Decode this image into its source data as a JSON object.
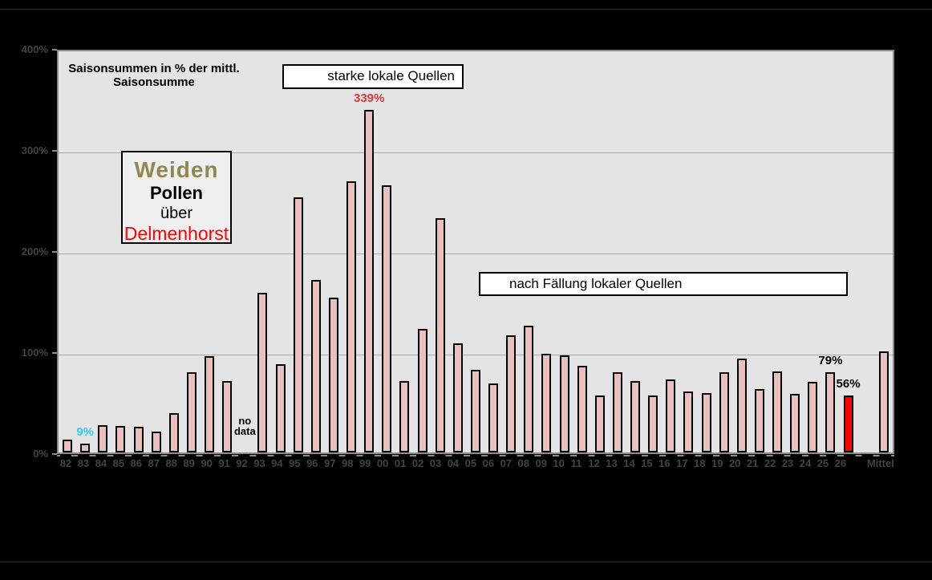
{
  "chart_data": {
    "type": "bar",
    "title_lines": [
      "Saisonsummen in %  der mittl.",
      "Saisonsumme"
    ],
    "info_box": {
      "line1": "Weiden",
      "line2": "Pollen",
      "line3": "über",
      "line4": "Delmenhorst"
    },
    "annotation_boxes": {
      "strong_sources": "starke lokale Quellen",
      "after_felling": "nach Fällung  lokaler Quellen"
    },
    "y_axis": {
      "ticks": [
        "400%",
        "300%",
        "200%",
        "100%",
        "0%"
      ],
      "min": 0,
      "max": 400,
      "grid": true
    },
    "legend_position": "none",
    "bars": [
      {
        "label": "82",
        "value": 13
      },
      {
        "label": "83",
        "value": 9,
        "value_label": "9%",
        "value_label_color": "#33CCFF"
      },
      {
        "label": "84",
        "value": 27
      },
      {
        "label": "85",
        "value": 26
      },
      {
        "label": "86",
        "value": 25
      },
      {
        "label": "87",
        "value": 21
      },
      {
        "label": "88",
        "value": 39
      },
      {
        "label": "89",
        "value": 79
      },
      {
        "label": "90",
        "value": 95
      },
      {
        "label": "91",
        "value": 71
      },
      {
        "label": "92",
        "value": null,
        "note": "no data"
      },
      {
        "label": "93",
        "value": 158
      },
      {
        "label": "94",
        "value": 87
      },
      {
        "label": "95",
        "value": 252
      },
      {
        "label": "96",
        "value": 171
      },
      {
        "label": "97",
        "value": 153
      },
      {
        "label": "98",
        "value": 268
      },
      {
        "label": "99",
        "value": 339,
        "value_label": "339%",
        "value_label_color": "#DD3A3A"
      },
      {
        "label": "00",
        "value": 264
      },
      {
        "label": "01",
        "value": 71
      },
      {
        "label": "02",
        "value": 122
      },
      {
        "label": "03",
        "value": 232
      },
      {
        "label": "04",
        "value": 108
      },
      {
        "label": "05",
        "value": 82
      },
      {
        "label": "06",
        "value": 68
      },
      {
        "label": "07",
        "value": 116
      },
      {
        "label": "08",
        "value": 125
      },
      {
        "label": "09",
        "value": 98
      },
      {
        "label": "10",
        "value": 96
      },
      {
        "label": "11",
        "value": 86
      },
      {
        "label": "12",
        "value": 56
      },
      {
        "label": "13",
        "value": 79
      },
      {
        "label": "14",
        "value": 71
      },
      {
        "label": "15",
        "value": 56
      },
      {
        "label": "16",
        "value": 72
      },
      {
        "label": "17",
        "value": 60
      },
      {
        "label": "18",
        "value": 59
      },
      {
        "label": "19",
        "value": 79
      },
      {
        "label": "20",
        "value": 93
      },
      {
        "label": "21",
        "value": 63
      },
      {
        "label": "22",
        "value": 80
      },
      {
        "label": "23",
        "value": 58
      },
      {
        "label": "24",
        "value": 70
      },
      {
        "label": "25",
        "value": 79,
        "value_label": "79%",
        "value_label_color": "#000000"
      },
      {
        "label": "26",
        "value": 56,
        "value_label": "56%",
        "value_label_color": "#000000",
        "fill": "#FF0000"
      },
      {
        "label": "",
        "value": null,
        "spacer": true
      },
      {
        "label": "Mittel",
        "value": 100
      }
    ],
    "colors": {
      "bar_fill": "#EABFBF",
      "bar_border": "#000000",
      "highlight_fill": "#FF0000",
      "plot_background": "#E4E4E4",
      "gridline": "#A9A9A9",
      "axis_label": "#424242"
    }
  }
}
